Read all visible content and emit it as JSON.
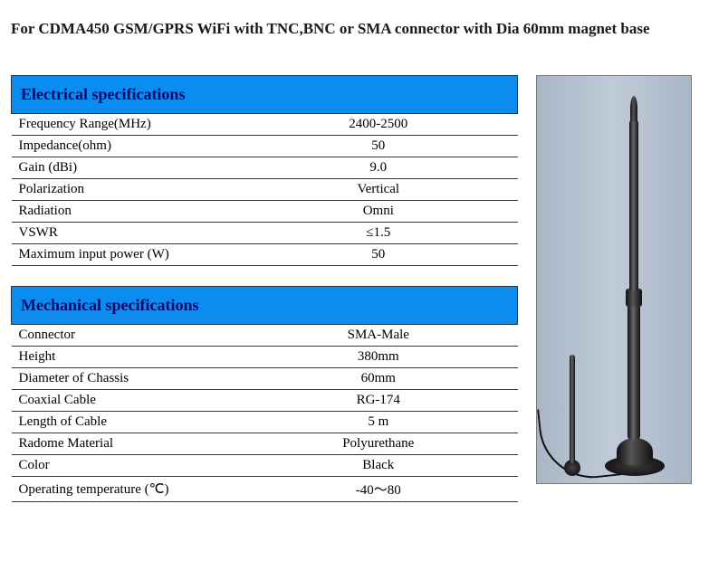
{
  "title": "For CDMA450 GSM/GPRS WiFi with TNC,BNC or SMA connector with Dia 60mm magnet base",
  "colors": {
    "header_bg": "#0a8cf0",
    "header_text": "#0a0a6a",
    "border": "#333333",
    "page_bg": "#ffffff",
    "image_bg_left": "#a9b6c6",
    "image_bg_mid": "#c0cbd8"
  },
  "tables": [
    {
      "header": "Electrical specifications",
      "rows": [
        {
          "label": "Frequency Range(MHz)",
          "value": "2400-2500"
        },
        {
          "label": "Impedance(ohm)",
          "value": "50"
        },
        {
          "label": "Gain (dBi)",
          "value": "9.0"
        },
        {
          "label": "Polarization",
          "value": "Vertical"
        },
        {
          "label": "Radiation",
          "value": "Omni"
        },
        {
          "label": "VSWR",
          "value": "≤1.5"
        },
        {
          "label": "Maximum input power (W)",
          "value": "50"
        }
      ]
    },
    {
      "header": "Mechanical specifications",
      "rows": [
        {
          "label": "Connector",
          "value": "SMA-Male"
        },
        {
          "label": "Height",
          "value": "380mm"
        },
        {
          "label": "Diameter of Chassis",
          "value": "60mm"
        },
        {
          "label": "Coaxial Cable",
          "value": "RG-174"
        },
        {
          "label": "Length of Cable",
          "value": "5 m"
        },
        {
          "label": "Radome Material",
          "value": "Polyurethane"
        },
        {
          "label": "Color",
          "value": "Black"
        },
        {
          "label": "Operating temperature (℃)",
          "value": "-40～80"
        }
      ]
    }
  ]
}
